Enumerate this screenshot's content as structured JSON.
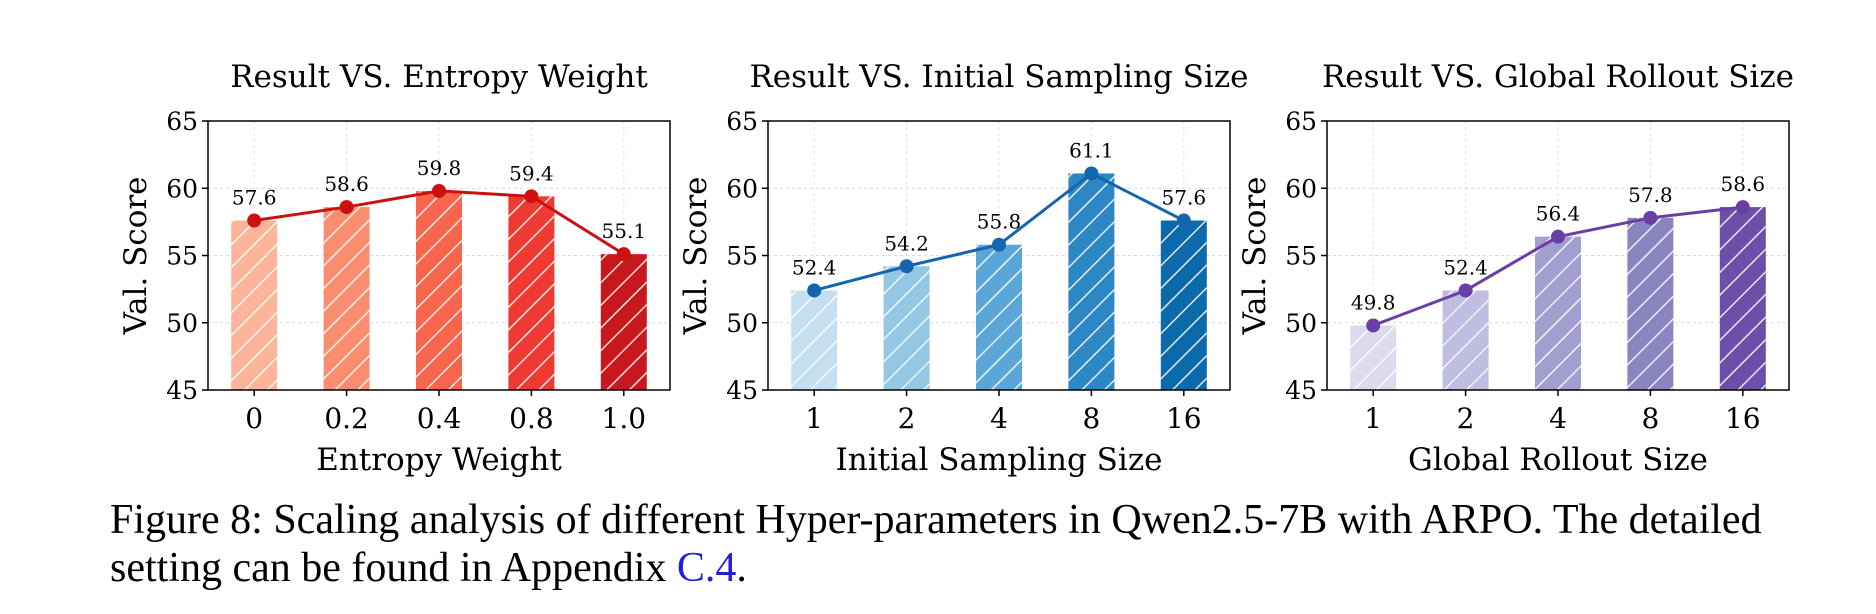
{
  "chart_data": [
    {
      "type": "bar",
      "title": "Result VS. Entropy Weight",
      "xlabel": "Entropy Weight",
      "ylabel": "Val. Score",
      "ylim": [
        45,
        65
      ],
      "yticks": [
        "45",
        "50",
        "55",
        "60",
        "65"
      ],
      "categories": [
        "0",
        "0.2",
        "0.4",
        "0.8",
        "1.0"
      ],
      "values": [
        57.6,
        58.6,
        59.8,
        59.4,
        55.1
      ],
      "data_labels": [
        "57.6",
        "58.6",
        "59.8",
        "59.4",
        "55.1"
      ],
      "bar_colors": [
        "#fcb59b",
        "#f98d6f",
        "#f6654c",
        "#ef3a33",
        "#c9181d"
      ],
      "line_color": "#cc1111",
      "overlay": "line-with-markers",
      "grid": true,
      "hatch": "diagonal"
    },
    {
      "type": "bar",
      "title": "Result VS. Initial Sampling Size",
      "xlabel": "Initial Sampling Size",
      "ylabel": "Val. Score",
      "ylim": [
        45,
        65
      ],
      "yticks": [
        "45",
        "50",
        "55",
        "60",
        "65"
      ],
      "categories": [
        "1",
        "2",
        "4",
        "8",
        "16"
      ],
      "values": [
        52.4,
        54.2,
        55.8,
        61.1,
        57.6
      ],
      "data_labels": [
        "52.4",
        "54.2",
        "55.8",
        "61.1",
        "57.6"
      ],
      "bar_colors": [
        "#c4dff0",
        "#93c7e5",
        "#5aa7d7",
        "#2d87c4",
        "#0d6aaa"
      ],
      "line_color": "#1565ad",
      "overlay": "line-with-markers",
      "grid": true,
      "hatch": "diagonal"
    },
    {
      "type": "bar",
      "title": "Result VS. Global Rollout Size",
      "xlabel": "Global Rollout Size",
      "ylabel": "Val. Score",
      "ylim": [
        45,
        65
      ],
      "yticks": [
        "45",
        "50",
        "55",
        "60",
        "65"
      ],
      "categories": [
        "1",
        "2",
        "4",
        "8",
        "16"
      ],
      "values": [
        49.8,
        52.4,
        56.4,
        57.8,
        58.6
      ],
      "data_labels": [
        "49.8",
        "52.4",
        "56.4",
        "57.8",
        "58.6"
      ],
      "bar_colors": [
        "#dcdbee",
        "#bfbde0",
        "#a29ecf",
        "#8a84c1",
        "#6d4ea8"
      ],
      "line_color": "#6a3fa5",
      "overlay": "line-with-markers",
      "grid": true,
      "hatch": "diagonal"
    }
  ],
  "caption": {
    "text": "Figure 8: Scaling analysis of different Hyper-parameters in Qwen2.5-7B with ARPO. The detailed setting can be found in Appendix ",
    "link": "C.4",
    "end": "."
  }
}
